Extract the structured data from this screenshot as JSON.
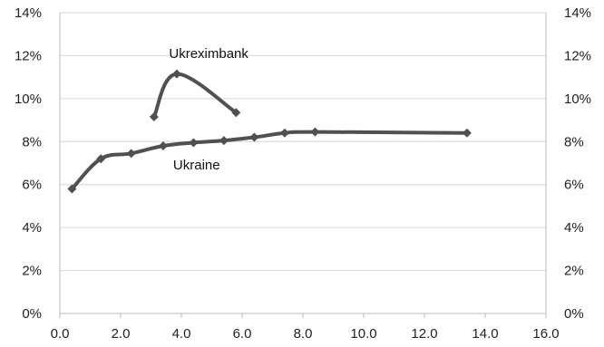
{
  "chart_data": {
    "type": "line",
    "title": "",
    "xlabel": "",
    "ylabel": "",
    "xlim": [
      0,
      16
    ],
    "ylim": [
      0,
      14
    ],
    "x_ticks": [
      {
        "value": 0,
        "label": "0.0"
      },
      {
        "value": 2,
        "label": "2.0"
      },
      {
        "value": 4,
        "label": "4.0"
      },
      {
        "value": 6,
        "label": "6.0"
      },
      {
        "value": 8,
        "label": "8.0"
      },
      {
        "value": 10,
        "label": "10.0"
      },
      {
        "value": 12,
        "label": "12.0"
      },
      {
        "value": 14,
        "label": "14.0"
      },
      {
        "value": 16,
        "label": "16.0"
      }
    ],
    "y_ticks": [
      {
        "value": 0,
        "label": "0%"
      },
      {
        "value": 2,
        "label": "2%"
      },
      {
        "value": 4,
        "label": "4%"
      },
      {
        "value": 6,
        "label": "6%"
      },
      {
        "value": 8,
        "label": "8%"
      },
      {
        "value": 10,
        "label": "10%"
      },
      {
        "value": 12,
        "label": "12%"
      },
      {
        "value": 14,
        "label": "14%"
      }
    ],
    "grid": {
      "horizontal": true,
      "vertical": false
    },
    "series_color": "#505050",
    "series": [
      {
        "name": "Ukreximbank",
        "label_anchor": {
          "x": 4.9,
          "y": 11.9
        },
        "points": [
          {
            "x": 3.1,
            "y": 9.15
          },
          {
            "x": 3.85,
            "y": 11.15
          },
          {
            "x": 5.8,
            "y": 9.35
          }
        ]
      },
      {
        "name": "Ukraine",
        "label_anchor": {
          "x": 4.5,
          "y": 6.7
        },
        "points": [
          {
            "x": 0.4,
            "y": 5.8
          },
          {
            "x": 1.35,
            "y": 7.2
          },
          {
            "x": 2.35,
            "y": 7.45
          },
          {
            "x": 3.4,
            "y": 7.8
          },
          {
            "x": 4.4,
            "y": 7.95
          },
          {
            "x": 5.4,
            "y": 8.05
          },
          {
            "x": 6.4,
            "y": 8.2
          },
          {
            "x": 7.4,
            "y": 8.4
          },
          {
            "x": 8.4,
            "y": 8.45
          },
          {
            "x": 13.4,
            "y": 8.4
          }
        ]
      }
    ]
  }
}
